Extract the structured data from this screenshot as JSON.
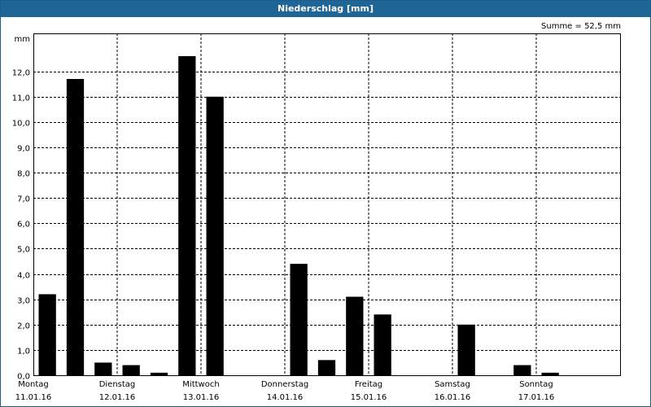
{
  "window": {
    "title": "Niederschlag [mm]"
  },
  "summary": {
    "text": "Summe = 52,5 mm"
  },
  "chart_data": {
    "type": "bar",
    "title": "Niederschlag [mm]",
    "ylabel": "mm",
    "ylim": [
      0,
      13.5
    ],
    "yticks": [
      "0,0",
      "1,0",
      "2,0",
      "3,0",
      "4,0",
      "5,0",
      "6,0",
      "7,0",
      "8,0",
      "9,0",
      "10,0",
      "11,0",
      "12,0"
    ],
    "grid": true,
    "days": [
      {
        "name": "Montag",
        "date": "11.01.16"
      },
      {
        "name": "Dienstag",
        "date": "12.01.16"
      },
      {
        "name": "Mittwoch",
        "date": "13.01.16"
      },
      {
        "name": "Donnerstag",
        "date": "14.01.16"
      },
      {
        "name": "Freitag",
        "date": "15.01.16"
      },
      {
        "name": "Samstag",
        "date": "16.01.16"
      },
      {
        "name": "Sonntag",
        "date": "17.01.16"
      }
    ],
    "bars_per_day": 3,
    "values": [
      3.2,
      11.7,
      0.5,
      0.4,
      0.1,
      12.6,
      11.0,
      0.0,
      0.0,
      4.4,
      0.6,
      3.1,
      2.4,
      0.0,
      0.0,
      2.0,
      0.0,
      0.4,
      0.1,
      0.0,
      0.0
    ],
    "summe": "Summe = 52,5 mm"
  }
}
